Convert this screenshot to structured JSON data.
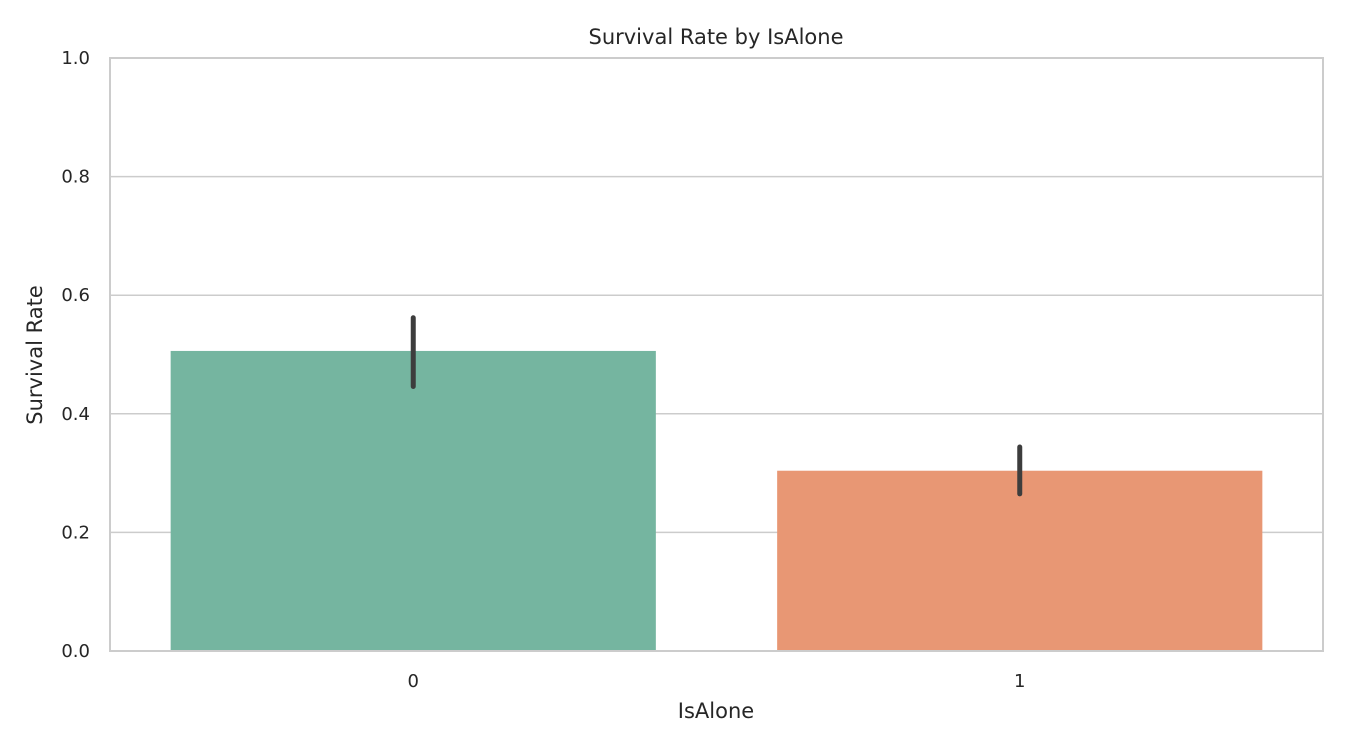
{
  "chart_data": {
    "type": "bar",
    "title": "Survival Rate by IsAlone",
    "xlabel": "IsAlone",
    "ylabel": "Survival Rate",
    "categories": [
      "0",
      "1"
    ],
    "values": [
      0.506,
      0.304
    ],
    "error_bars": [
      {
        "low": 0.446,
        "high": 0.562
      },
      {
        "low": 0.265,
        "high": 0.344
      }
    ],
    "ylim": [
      0,
      1.0
    ],
    "yticks": [
      0.0,
      0.2,
      0.4,
      0.6,
      0.8,
      1.0
    ],
    "ytick_labels": [
      "0.0",
      "0.2",
      "0.4",
      "0.6",
      "0.8",
      "1.0"
    ],
    "grid": true,
    "colors": [
      "#75b5a0",
      "#e89774"
    ],
    "errorbar_color": "#3d3d3d",
    "grid_color": "#cccccc",
    "spine_color": "#cccccc"
  }
}
